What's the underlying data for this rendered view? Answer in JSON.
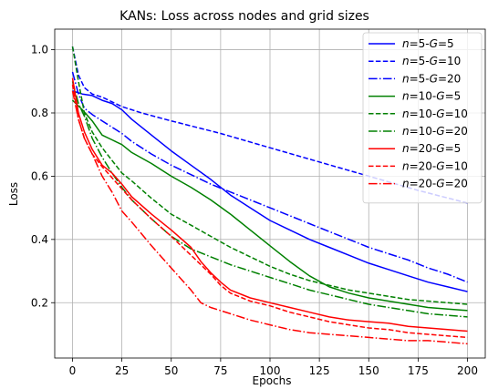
{
  "chart_data": {
    "type": "line",
    "title": "KANs: Loss across nodes and grid sizes",
    "xlabel": "Epochs",
    "ylabel": "Loss",
    "xlim": [
      -9,
      209
    ],
    "ylim": [
      0.025,
      1.065
    ],
    "xticks": [
      0,
      25,
      50,
      75,
      100,
      125,
      150,
      175,
      200
    ],
    "yticks": [
      0.2,
      0.4,
      0.6,
      0.8,
      1.0
    ],
    "ytick_labels": [
      "0.2",
      "0.4",
      "0.6",
      "0.8",
      "1.0"
    ],
    "grid": true,
    "legend_position": "top-right",
    "series": [
      {
        "name": "n=5-G=5",
        "label_prefix": "n",
        "label_mid": "=5-",
        "label_g": "G",
        "label_suffix": "=5",
        "color": "#0000ff",
        "dash": "solid",
        "points": [
          [
            0,
            0.87
          ],
          [
            5,
            0.86
          ],
          [
            10,
            0.855
          ],
          [
            15,
            0.84
          ],
          [
            20,
            0.83
          ],
          [
            25,
            0.81
          ],
          [
            30,
            0.78
          ],
          [
            40,
            0.73
          ],
          [
            50,
            0.68
          ],
          [
            60,
            0.635
          ],
          [
            70,
            0.59
          ],
          [
            80,
            0.54
          ],
          [
            90,
            0.5
          ],
          [
            100,
            0.46
          ],
          [
            110,
            0.43
          ],
          [
            120,
            0.4
          ],
          [
            130,
            0.375
          ],
          [
            140,
            0.35
          ],
          [
            150,
            0.325
          ],
          [
            160,
            0.305
          ],
          [
            170,
            0.285
          ],
          [
            180,
            0.265
          ],
          [
            190,
            0.25
          ],
          [
            200,
            0.235
          ]
        ]
      },
      {
        "name": "n=5-G=10",
        "label_prefix": "n",
        "label_mid": "=5-",
        "label_g": "G",
        "label_suffix": "=10",
        "color": "#0000ff",
        "dash": "dashed",
        "points": [
          [
            0,
            1.01
          ],
          [
            3,
            0.92
          ],
          [
            6,
            0.88
          ],
          [
            10,
            0.86
          ],
          [
            15,
            0.85
          ],
          [
            20,
            0.835
          ],
          [
            25,
            0.82
          ],
          [
            35,
            0.8
          ],
          [
            50,
            0.775
          ],
          [
            75,
            0.735
          ],
          [
            100,
            0.69
          ],
          [
            125,
            0.645
          ],
          [
            150,
            0.6
          ],
          [
            175,
            0.555
          ],
          [
            200,
            0.515
          ]
        ]
      },
      {
        "name": "n=5-G=20",
        "label_prefix": "n",
        "label_mid": "=5-",
        "label_g": "G",
        "label_suffix": "=20",
        "color": "#0000ff",
        "dash": "dashdot",
        "points": [
          [
            0,
            0.93
          ],
          [
            3,
            0.86
          ],
          [
            6,
            0.815
          ],
          [
            10,
            0.795
          ],
          [
            15,
            0.775
          ],
          [
            20,
            0.755
          ],
          [
            25,
            0.735
          ],
          [
            30,
            0.71
          ],
          [
            40,
            0.67
          ],
          [
            50,
            0.635
          ],
          [
            60,
            0.605
          ],
          [
            70,
            0.575
          ],
          [
            80,
            0.55
          ],
          [
            90,
            0.525
          ],
          [
            100,
            0.5
          ],
          [
            110,
            0.475
          ],
          [
            120,
            0.45
          ],
          [
            130,
            0.425
          ],
          [
            140,
            0.4
          ],
          [
            150,
            0.375
          ],
          [
            160,
            0.355
          ],
          [
            170,
            0.335
          ],
          [
            180,
            0.31
          ],
          [
            190,
            0.29
          ],
          [
            200,
            0.265
          ]
        ]
      },
      {
        "name": "n=10-G=5",
        "label_prefix": "n",
        "label_mid": "=10-",
        "label_g": "G",
        "label_suffix": "=5",
        "color": "#008000",
        "dash": "solid",
        "points": [
          [
            0,
            0.84
          ],
          [
            5,
            0.81
          ],
          [
            10,
            0.775
          ],
          [
            15,
            0.73
          ],
          [
            20,
            0.715
          ],
          [
            25,
            0.7
          ],
          [
            30,
            0.675
          ],
          [
            40,
            0.64
          ],
          [
            50,
            0.6
          ],
          [
            60,
            0.565
          ],
          [
            70,
            0.525
          ],
          [
            80,
            0.48
          ],
          [
            90,
            0.43
          ],
          [
            100,
            0.38
          ],
          [
            110,
            0.33
          ],
          [
            120,
            0.285
          ],
          [
            130,
            0.25
          ],
          [
            140,
            0.23
          ],
          [
            150,
            0.215
          ],
          [
            160,
            0.205
          ],
          [
            170,
            0.195
          ],
          [
            180,
            0.185
          ],
          [
            190,
            0.18
          ],
          [
            200,
            0.175
          ]
        ]
      },
      {
        "name": "n=10-G=10",
        "label_prefix": "n",
        "label_mid": "=10-",
        "label_g": "G",
        "label_suffix": "=10",
        "color": "#008000",
        "dash": "dashed",
        "points": [
          [
            0,
            1.01
          ],
          [
            3,
            0.9
          ],
          [
            6,
            0.8
          ],
          [
            10,
            0.74
          ],
          [
            15,
            0.69
          ],
          [
            20,
            0.65
          ],
          [
            25,
            0.61
          ],
          [
            30,
            0.585
          ],
          [
            40,
            0.53
          ],
          [
            50,
            0.48
          ],
          [
            60,
            0.445
          ],
          [
            70,
            0.41
          ],
          [
            80,
            0.375
          ],
          [
            90,
            0.345
          ],
          [
            100,
            0.315
          ],
          [
            110,
            0.29
          ],
          [
            120,
            0.27
          ],
          [
            130,
            0.255
          ],
          [
            140,
            0.24
          ],
          [
            150,
            0.23
          ],
          [
            160,
            0.22
          ],
          [
            170,
            0.21
          ],
          [
            180,
            0.205
          ],
          [
            190,
            0.2
          ],
          [
            200,
            0.195
          ]
        ]
      },
      {
        "name": "n=10-G=20",
        "label_prefix": "n",
        "label_mid": "=10-",
        "label_g": "G",
        "label_suffix": "=20",
        "color": "#008000",
        "dash": "dashdot",
        "points": [
          [
            0,
            0.9
          ],
          [
            3,
            0.83
          ],
          [
            6,
            0.79
          ],
          [
            10,
            0.72
          ],
          [
            15,
            0.66
          ],
          [
            20,
            0.61
          ],
          [
            25,
            0.565
          ],
          [
            30,
            0.525
          ],
          [
            40,
            0.465
          ],
          [
            50,
            0.41
          ],
          [
            60,
            0.37
          ],
          [
            70,
            0.345
          ],
          [
            80,
            0.32
          ],
          [
            90,
            0.3
          ],
          [
            100,
            0.28
          ],
          [
            110,
            0.26
          ],
          [
            120,
            0.24
          ],
          [
            130,
            0.225
          ],
          [
            140,
            0.21
          ],
          [
            150,
            0.195
          ],
          [
            160,
            0.185
          ],
          [
            170,
            0.175
          ],
          [
            180,
            0.165
          ],
          [
            190,
            0.16
          ],
          [
            200,
            0.155
          ]
        ]
      },
      {
        "name": "n=20-G=5",
        "label_prefix": "n",
        "label_mid": "=20-",
        "label_g": "G",
        "label_suffix": "=5",
        "color": "#ff0000",
        "dash": "solid",
        "points": [
          [
            0,
            0.91
          ],
          [
            3,
            0.8
          ],
          [
            6,
            0.74
          ],
          [
            10,
            0.685
          ],
          [
            15,
            0.635
          ],
          [
            20,
            0.61
          ],
          [
            25,
            0.575
          ],
          [
            30,
            0.535
          ],
          [
            40,
            0.48
          ],
          [
            50,
            0.43
          ],
          [
            60,
            0.375
          ],
          [
            65,
            0.33
          ],
          [
            70,
            0.295
          ],
          [
            75,
            0.265
          ],
          [
            80,
            0.24
          ],
          [
            90,
            0.215
          ],
          [
            100,
            0.2
          ],
          [
            110,
            0.185
          ],
          [
            120,
            0.17
          ],
          [
            130,
            0.155
          ],
          [
            140,
            0.145
          ],
          [
            150,
            0.14
          ],
          [
            160,
            0.135
          ],
          [
            170,
            0.125
          ],
          [
            180,
            0.12
          ],
          [
            190,
            0.115
          ],
          [
            200,
            0.11
          ]
        ]
      },
      {
        "name": "n=20-G=10",
        "label_prefix": "n",
        "label_mid": "=20-",
        "label_g": "G",
        "label_suffix": "=10",
        "color": "#ff0000",
        "dash": "dashed",
        "points": [
          [
            0,
            0.89
          ],
          [
            3,
            0.78
          ],
          [
            6,
            0.72
          ],
          [
            10,
            0.67
          ],
          [
            15,
            0.63
          ],
          [
            20,
            0.595
          ],
          [
            25,
            0.56
          ],
          [
            30,
            0.525
          ],
          [
            40,
            0.465
          ],
          [
            50,
            0.41
          ],
          [
            60,
            0.35
          ],
          [
            70,
            0.29
          ],
          [
            75,
            0.255
          ],
          [
            80,
            0.23
          ],
          [
            90,
            0.205
          ],
          [
            100,
            0.19
          ],
          [
            110,
            0.17
          ],
          [
            120,
            0.155
          ],
          [
            130,
            0.14
          ],
          [
            140,
            0.13
          ],
          [
            150,
            0.12
          ],
          [
            160,
            0.115
          ],
          [
            170,
            0.105
          ],
          [
            180,
            0.1
          ],
          [
            190,
            0.095
          ],
          [
            200,
            0.09
          ]
        ]
      },
      {
        "name": "n=20-G=20",
        "label_prefix": "n",
        "label_mid": "=20-",
        "label_g": "G",
        "label_suffix": "=20",
        "color": "#ff0000",
        "dash": "dashdot",
        "points": [
          [
            0,
            0.87
          ],
          [
            3,
            0.78
          ],
          [
            6,
            0.72
          ],
          [
            10,
            0.67
          ],
          [
            15,
            0.6
          ],
          [
            20,
            0.55
          ],
          [
            25,
            0.49
          ],
          [
            30,
            0.455
          ],
          [
            40,
            0.38
          ],
          [
            50,
            0.31
          ],
          [
            60,
            0.24
          ],
          [
            65,
            0.2
          ],
          [
            70,
            0.185
          ],
          [
            80,
            0.165
          ],
          [
            90,
            0.145
          ],
          [
            100,
            0.13
          ],
          [
            110,
            0.115
          ],
          [
            120,
            0.105
          ],
          [
            130,
            0.1
          ],
          [
            140,
            0.095
          ],
          [
            150,
            0.09
          ],
          [
            160,
            0.085
          ],
          [
            170,
            0.08
          ],
          [
            180,
            0.08
          ],
          [
            190,
            0.075
          ],
          [
            200,
            0.07
          ]
        ]
      }
    ]
  }
}
